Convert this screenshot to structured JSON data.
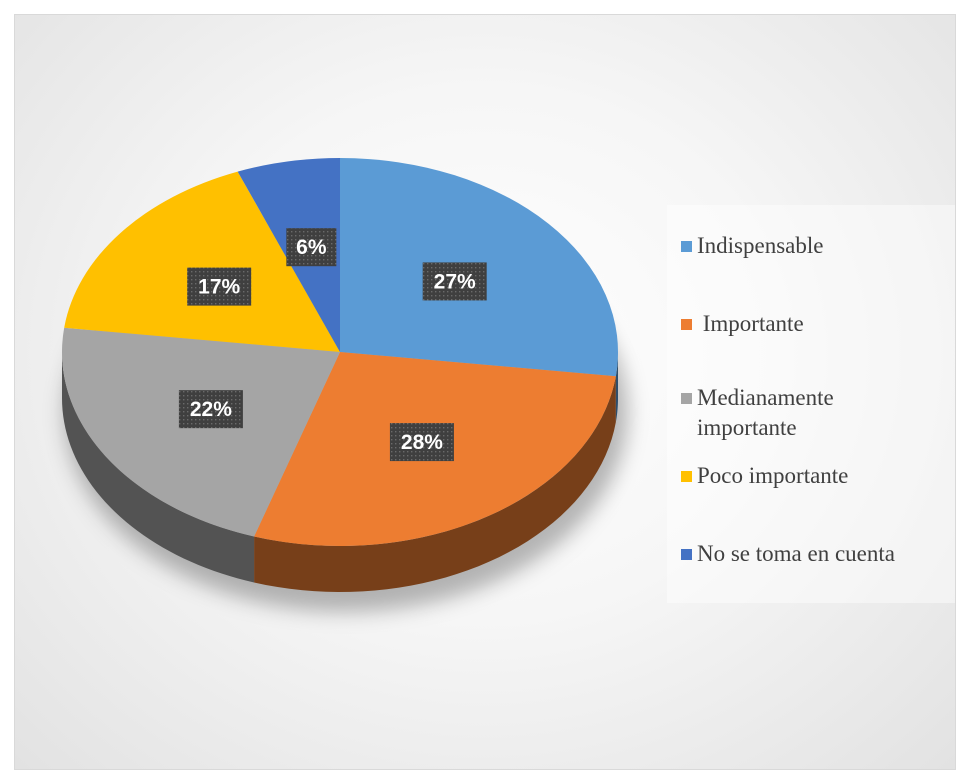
{
  "chart_data": {
    "type": "pie",
    "title": "",
    "categories": [
      "Indispensable",
      " Importante",
      "Medianamente importante",
      "Poco importante",
      "No se toma en cuenta"
    ],
    "values": [
      27,
      28,
      22,
      17,
      6
    ],
    "labels": [
      "27%",
      "28%",
      "22%",
      "17%",
      "6%"
    ],
    "colors": [
      "#5b9bd5",
      "#ed7d31",
      "#a5a5a5",
      "#ffc000",
      "#4472c4"
    ],
    "legend": {
      "placement": "right",
      "items": [
        {
          "label": "Indispensable",
          "color": "#5b9bd5"
        },
        {
          "label": " Importante",
          "color": "#ed7d31"
        },
        {
          "label": "Medianamente\nimportante",
          "color": "#a5a5a5"
        },
        {
          "label": "Poco importante",
          "color": "#ffc000"
        },
        {
          "label": "No se toma en cuenta",
          "color": "#4472c4"
        }
      ]
    },
    "style": "3d-pie"
  }
}
